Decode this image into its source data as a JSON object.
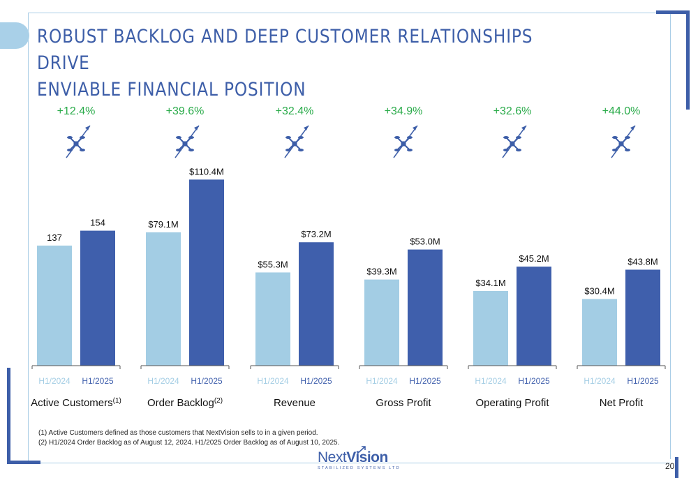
{
  "title_line1": "ROBUST BACKLOG AND DEEP CUSTOMER RELATIONSHIPS DRIVE",
  "title_line2": "ENVIABLE FINANCIAL POSITION",
  "colors": {
    "h1_2024": "#a3cde4",
    "h1_2025": "#3f5fac",
    "growth": "#2aab4a",
    "title": "#3d5ea8"
  },
  "icon": "drone-arrow-icon",
  "chart_data": {
    "type": "bar",
    "series_names": [
      "H1/2024",
      "H1/2025"
    ],
    "groups": [
      {
        "category": "Active Customers",
        "sup": "(1)",
        "growth": "+12.4%",
        "values": [
          137,
          154
        ],
        "labels": [
          "137",
          "154"
        ],
        "ylim": [
          0,
          250
        ]
      },
      {
        "category": "Order Backlog",
        "sup": "(2)",
        "growth": "+39.6%",
        "values": [
          79.1,
          110.4
        ],
        "labels": [
          "$79.1M",
          "$110.4M"
        ],
        "ylim": [
          0,
          130
        ]
      },
      {
        "category": "Revenue",
        "sup": "",
        "growth": "+32.4%",
        "values": [
          55.3,
          73.2
        ],
        "labels": [
          "$55.3M",
          "$73.2M"
        ],
        "ylim": [
          0,
          130
        ]
      },
      {
        "category": "Gross Profit",
        "sup": "",
        "growth": "+34.9%",
        "values": [
          39.3,
          53.0
        ],
        "labels": [
          "$39.3M",
          "$53.0M"
        ],
        "ylim": [
          0,
          100
        ]
      },
      {
        "category": "Operating Profit",
        "sup": "",
        "growth": "+32.6%",
        "values": [
          34.1,
          45.2
        ],
        "labels": [
          "$34.1M",
          "$45.2M"
        ],
        "ylim": [
          0,
          100
        ]
      },
      {
        "category": "Net Profit",
        "sup": "",
        "growth": "+44.0%",
        "values": [
          30.4,
          43.8
        ],
        "labels": [
          "$30.4M",
          "$43.8M"
        ],
        "ylim": [
          0,
          100
        ]
      }
    ]
  },
  "footnote1": "(1) Active Customers defined as those customers that NextVision sells to in a given period.",
  "footnote2": "(2) H1/2024 Order Backlog as of August 12, 2024. H1/2025 Order Backlog as of August 10, 2025.",
  "logo_text_next": "Next",
  "logo_text_vision": "Vision",
  "logo_subtitle": "STABILIZED SYSTEMS LTD",
  "page_number": "20"
}
